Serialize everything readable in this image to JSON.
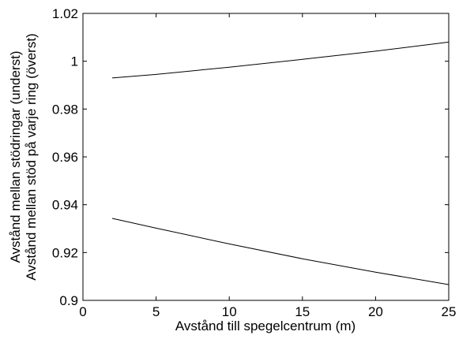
{
  "chart_data": {
    "type": "line",
    "title": "",
    "xlabel": "Avstånd till spegelcentrum (m)",
    "ylabel": [
      "Avstånd mellan stödringar (underst)",
      "Avstånd mellan stöd på varje ring (överst)"
    ],
    "xlim": [
      0,
      25
    ],
    "ylim": [
      0.9,
      1.02
    ],
    "xticks": [
      0,
      5,
      10,
      15,
      20,
      25
    ],
    "xtick_labels": [
      "0",
      "5",
      "10",
      "15",
      "20",
      "25"
    ],
    "yticks": [
      0.9,
      0.92,
      0.94,
      0.96,
      0.98,
      1.0,
      1.02
    ],
    "ytick_labels": [
      "0.9",
      "0.92",
      "0.94",
      "0.96",
      "0.98",
      "1",
      "1.02"
    ],
    "grid": false,
    "legend": "none",
    "series": [
      {
        "color": "#000000",
        "x": [
          2,
          5,
          10,
          15,
          20,
          25
        ],
        "y": [
          0.993,
          0.9945,
          0.9975,
          1.0008,
          1.0042,
          1.008
        ]
      },
      {
        "color": "#000000",
        "x": [
          2,
          5,
          10,
          15,
          20,
          25
        ],
        "y": [
          0.9343,
          0.9302,
          0.9236,
          0.9174,
          0.9118,
          0.9066
        ]
      }
    ]
  }
}
